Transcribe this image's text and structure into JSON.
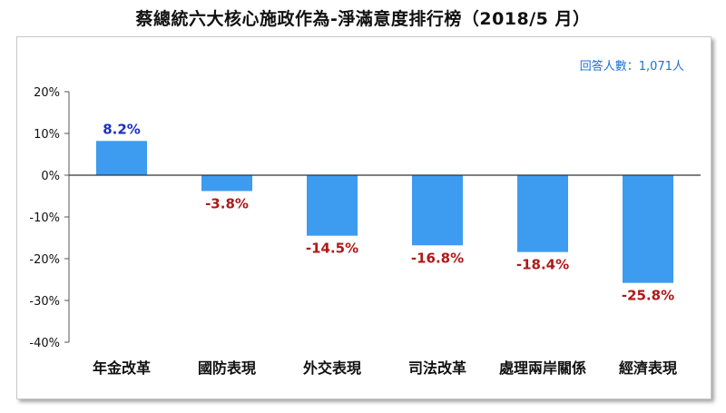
{
  "chart_data": {
    "type": "bar",
    "title": "蔡總統六大核心施政作為-淨滿意度排行榜（2018/5 月）",
    "annotation": "回答人數：1,071人",
    "categories": [
      "年金改革",
      "國防表現",
      "外交表現",
      "司法改革",
      "處理兩岸關係",
      "經濟表現"
    ],
    "values": [
      8.2,
      -3.8,
      -14.5,
      -16.8,
      -18.4,
      -25.8
    ],
    "data_labels": [
      "8.2%",
      "-3.8%",
      "-14.5%",
      "-16.8%",
      "-18.4%",
      "-25.8%"
    ],
    "yticks": [
      "20%",
      "10%",
      "0%",
      "-10%",
      "-20%",
      "-30%",
      "-40%"
    ],
    "ylim": [
      -40,
      20
    ],
    "xlabel": "",
    "ylabel": "",
    "grid": false,
    "colors": {
      "bar": "#3d9bf0",
      "positive_label": "#1a2fc7",
      "negative_label": "#b01818",
      "annotation": "#1f6fd6"
    }
  }
}
